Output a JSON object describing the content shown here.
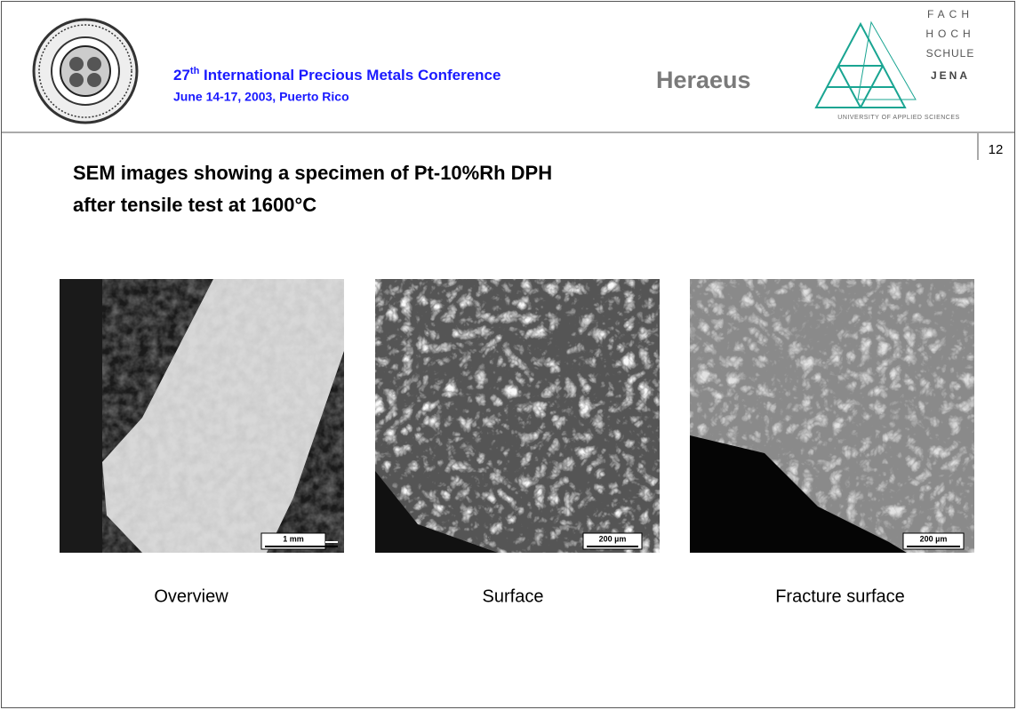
{
  "header": {
    "conference_number": "27",
    "conference_suffix": "th",
    "conference_name": "International Precious Metals Conference",
    "conference_details": "June 14-17, 2003, Puerto Rico",
    "sponsor": "Heraeus",
    "university_logo": {
      "lines": [
        "FACH",
        "HOCH",
        "SCHULE",
        "JENA"
      ],
      "subtitle": "UNIVERSITY OF APPLIED SCIENCES"
    }
  },
  "page_number": "12",
  "title": [
    "SEM images showing a specimen of Pt-10%Rh DPH",
    "after tensile test at 1600°C"
  ],
  "images": [
    {
      "scale_bar": "1 mm",
      "caption": "Overview"
    },
    {
      "scale_bar": "200 µm",
      "caption": "Surface"
    },
    {
      "scale_bar": "200 µm",
      "caption": "Fracture surface"
    }
  ]
}
